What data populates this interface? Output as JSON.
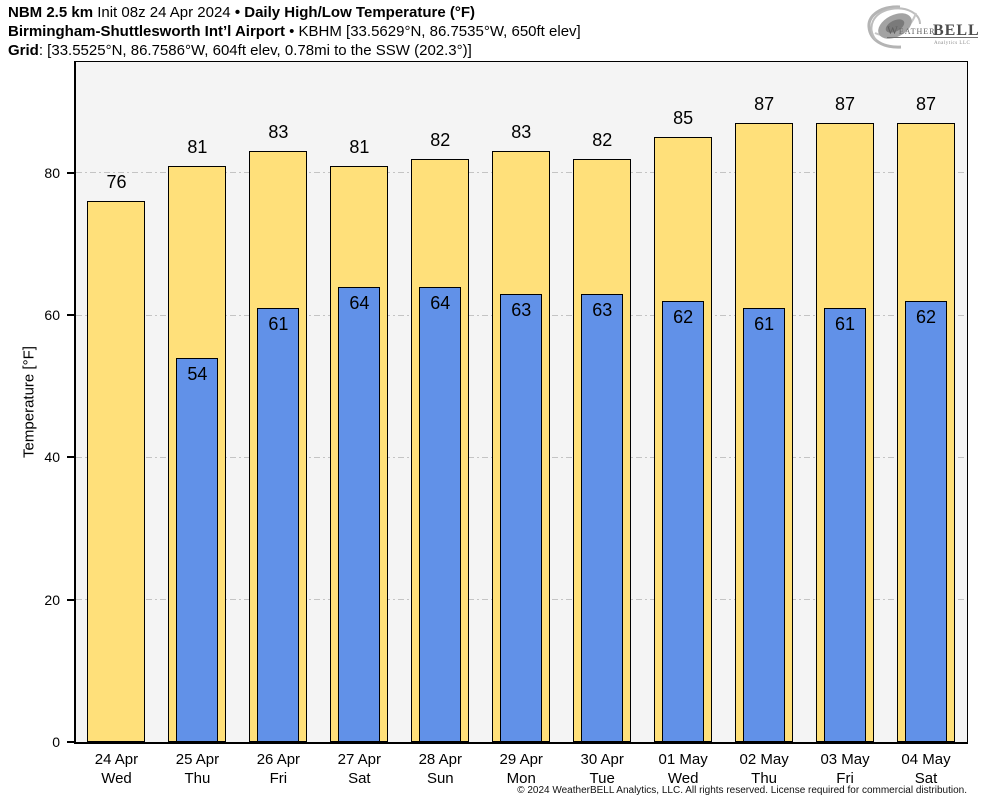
{
  "header": {
    "line1": {
      "model": "NBM 2.5 km",
      "init": "Init 08z 24 Apr 2024",
      "sep": "•",
      "product": "Daily High/Low Temperature (°F)"
    },
    "line2": {
      "station": "Birmingham-Shuttlesworth Int’l Airport",
      "sep": "•",
      "details": "KBHM [33.5629°N, 86.7535°W, 650ft elev]"
    },
    "line3": {
      "label": "Grid",
      "details": ": [33.5525°N, 86.7586°W, 604ft elev, 0.78mi to the SSW (202.3°)]"
    }
  },
  "logo": {
    "weather": "Weather",
    "bell": "BELL",
    "subtext": "Analytics LLC"
  },
  "chart_data": {
    "type": "bar",
    "title": "NBM 2.5 km • Daily High/Low Temperature (°F) — KBHM",
    "categories": [
      {
        "date": "24 Apr",
        "day": "Wed"
      },
      {
        "date": "25 Apr",
        "day": "Thu"
      },
      {
        "date": "26 Apr",
        "day": "Fri"
      },
      {
        "date": "27 Apr",
        "day": "Sat"
      },
      {
        "date": "28 Apr",
        "day": "Sun"
      },
      {
        "date": "29 Apr",
        "day": "Mon"
      },
      {
        "date": "30 Apr",
        "day": "Tue"
      },
      {
        "date": "01 May",
        "day": "Wed"
      },
      {
        "date": "02 May",
        "day": "Thu"
      },
      {
        "date": "03 May",
        "day": "Fri"
      },
      {
        "date": "04 May",
        "day": "Sat"
      }
    ],
    "series": [
      {
        "name": "High",
        "color": "#FFE07A",
        "values": [
          76,
          81,
          83,
          81,
          82,
          83,
          82,
          85,
          87,
          87,
          87
        ]
      },
      {
        "name": "Low",
        "color": "#6191E8",
        "values": [
          null,
          54,
          61,
          64,
          64,
          63,
          63,
          62,
          61,
          61,
          62
        ]
      }
    ],
    "xlabel": "",
    "ylabel": "Temperature [°F]",
    "yticks": [
      0,
      20,
      40,
      60,
      80
    ],
    "ylim": [
      0,
      95.5
    ],
    "grid": true,
    "legend_position": "none",
    "plot_bg": "#f4f4f4",
    "grid_color": "#c4c4c4",
    "axis_color": "#000000"
  },
  "footer": {
    "copyright": "© 2024 WeatherBELL Analytics, LLC. All rights reserved. License required for commercial distribution."
  }
}
